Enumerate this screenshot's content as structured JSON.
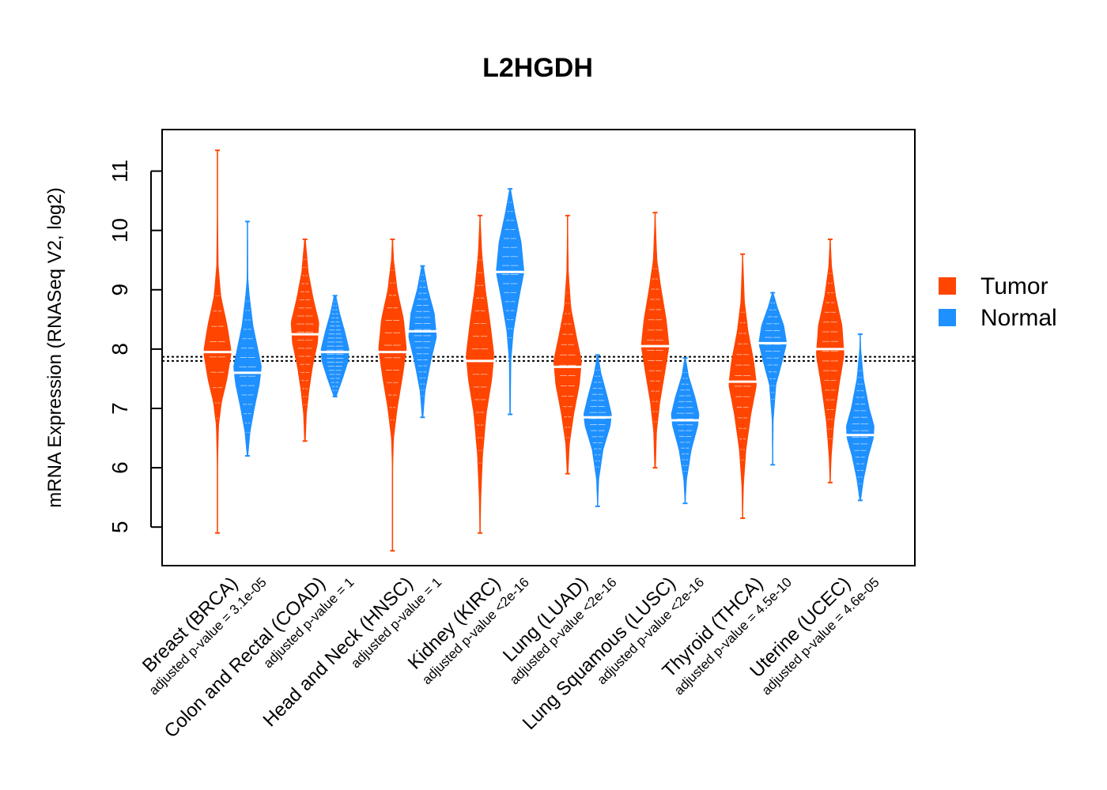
{
  "chart_data": {
    "type": "violin",
    "title": "L2HGDH",
    "ylabel": "mRNA Expression (RNASeq V2, log2)",
    "xlabel": "",
    "ylim": [
      4.35,
      11.7
    ],
    "yticks": [
      5,
      6,
      7,
      8,
      9,
      10,
      11
    ],
    "reference_lines": [
      7.8,
      7.87
    ],
    "legend": {
      "position": "right",
      "entries": [
        {
          "name": "Tumor",
          "color": "#FF4500"
        },
        {
          "name": "Normal",
          "color": "#1E90FF"
        }
      ]
    },
    "categories": [
      {
        "label": "Breast (BRCA)",
        "pvalue": "adjusted p-value = 3.1e-05",
        "tumor": {
          "median": 7.95,
          "min": 4.9,
          "max": 11.35,
          "density": [
            [
              4.9,
              0.02
            ],
            [
              5.85,
              0.02
            ],
            [
              6.3,
              0.06
            ],
            [
              6.7,
              0.1
            ],
            [
              7.1,
              0.3
            ],
            [
              7.5,
              0.7
            ],
            [
              7.95,
              1.0
            ],
            [
              8.4,
              0.7
            ],
            [
              8.9,
              0.25
            ],
            [
              9.4,
              0.08
            ],
            [
              10.3,
              0.03
            ],
            [
              11.35,
              0.02
            ]
          ]
        },
        "normal": {
          "median": 7.6,
          "min": 6.2,
          "max": 10.15,
          "density": [
            [
              6.2,
              0.05
            ],
            [
              6.6,
              0.2
            ],
            [
              7.0,
              0.5
            ],
            [
              7.4,
              0.85
            ],
            [
              7.7,
              1.0
            ],
            [
              8.0,
              0.75
            ],
            [
              8.4,
              0.4
            ],
            [
              8.9,
              0.15
            ],
            [
              9.2,
              0.05
            ],
            [
              10.15,
              0.03
            ]
          ]
        }
      },
      {
        "label": "Colon and Rectal (COAD)",
        "pvalue": "adjusted p-value = 1",
        "tumor": {
          "median": 8.25,
          "min": 6.45,
          "max": 9.85,
          "density": [
            [
              6.45,
              0.05
            ],
            [
              6.9,
              0.12
            ],
            [
              7.3,
              0.3
            ],
            [
              7.7,
              0.55
            ],
            [
              8.1,
              0.9
            ],
            [
              8.45,
              1.0
            ],
            [
              8.85,
              0.6
            ],
            [
              9.3,
              0.25
            ],
            [
              9.85,
              0.05
            ]
          ]
        },
        "normal": {
          "median": 7.95,
          "min": 7.2,
          "max": 8.9,
          "density": [
            [
              7.2,
              0.1
            ],
            [
              7.5,
              0.55
            ],
            [
              7.8,
              0.95
            ],
            [
              8.0,
              1.0
            ],
            [
              8.3,
              0.7
            ],
            [
              8.6,
              0.35
            ],
            [
              8.9,
              0.08
            ]
          ]
        }
      },
      {
        "label": "Head and Neck (HNSC)",
        "pvalue": "adjusted p-value = 1",
        "tumor": {
          "median": 7.95,
          "min": 4.6,
          "max": 9.85,
          "density": [
            [
              4.6,
              0.02
            ],
            [
              5.1,
              0.02
            ],
            [
              6.0,
              0.03
            ],
            [
              6.5,
              0.1
            ],
            [
              7.0,
              0.35
            ],
            [
              7.5,
              0.7
            ],
            [
              8.0,
              1.0
            ],
            [
              8.5,
              0.8
            ],
            [
              9.0,
              0.35
            ],
            [
              9.5,
              0.1
            ],
            [
              9.85,
              0.03
            ]
          ]
        },
        "normal": {
          "median": 8.3,
          "min": 6.85,
          "max": 9.4,
          "density": [
            [
              6.85,
              0.05
            ],
            [
              7.3,
              0.2
            ],
            [
              7.8,
              0.6
            ],
            [
              8.2,
              1.0
            ],
            [
              8.6,
              0.85
            ],
            [
              9.0,
              0.4
            ],
            [
              9.4,
              0.08
            ]
          ]
        }
      },
      {
        "label": "Kidney (KIRC)",
        "pvalue": "adjusted p-value <2e-16",
        "tumor": {
          "median": 7.8,
          "min": 4.9,
          "max": 10.25,
          "density": [
            [
              4.9,
              0.03
            ],
            [
              5.5,
              0.08
            ],
            [
              6.2,
              0.2
            ],
            [
              6.9,
              0.45
            ],
            [
              7.5,
              0.85
            ],
            [
              7.9,
              1.0
            ],
            [
              8.4,
              0.75
            ],
            [
              9.0,
              0.4
            ],
            [
              9.6,
              0.15
            ],
            [
              10.25,
              0.03
            ]
          ]
        },
        "normal": {
          "median": 9.3,
          "min": 6.9,
          "max": 10.7,
          "density": [
            [
              6.9,
              0.04
            ],
            [
              7.8,
              0.08
            ],
            [
              8.3,
              0.25
            ],
            [
              8.8,
              0.6
            ],
            [
              9.3,
              1.0
            ],
            [
              9.8,
              0.8
            ],
            [
              10.3,
              0.35
            ],
            [
              10.7,
              0.05
            ]
          ]
        }
      },
      {
        "label": "Lung (LUAD)",
        "pvalue": "adjusted p-value <2e-16",
        "tumor": {
          "median": 7.7,
          "min": 5.9,
          "max": 10.25,
          "density": [
            [
              5.9,
              0.05
            ],
            [
              6.4,
              0.15
            ],
            [
              6.9,
              0.45
            ],
            [
              7.4,
              0.85
            ],
            [
              7.8,
              1.0
            ],
            [
              8.2,
              0.65
            ],
            [
              8.7,
              0.25
            ],
            [
              9.3,
              0.08
            ],
            [
              10.25,
              0.02
            ]
          ]
        },
        "normal": {
          "median": 6.85,
          "min": 5.35,
          "max": 7.9,
          "density": [
            [
              5.35,
              0.03
            ],
            [
              5.8,
              0.1
            ],
            [
              6.3,
              0.4
            ],
            [
              6.7,
              0.9
            ],
            [
              6.9,
              1.0
            ],
            [
              7.2,
              0.7
            ],
            [
              7.6,
              0.25
            ],
            [
              7.9,
              0.05
            ]
          ]
        }
      },
      {
        "label": "Lung Squamous (LUSC)",
        "pvalue": "adjusted p-value <2e-16",
        "tumor": {
          "median": 8.05,
          "min": 6.0,
          "max": 10.3,
          "density": [
            [
              6.0,
              0.05
            ],
            [
              6.6,
              0.12
            ],
            [
              7.1,
              0.35
            ],
            [
              7.6,
              0.7
            ],
            [
              8.05,
              1.0
            ],
            [
              8.5,
              0.8
            ],
            [
              9.0,
              0.45
            ],
            [
              9.5,
              0.15
            ],
            [
              10.3,
              0.02
            ]
          ]
        },
        "normal": {
          "median": 6.8,
          "min": 5.4,
          "max": 7.85,
          "density": [
            [
              5.4,
              0.03
            ],
            [
              5.8,
              0.12
            ],
            [
              6.3,
              0.45
            ],
            [
              6.7,
              0.9
            ],
            [
              6.9,
              1.0
            ],
            [
              7.2,
              0.7
            ],
            [
              7.55,
              0.25
            ],
            [
              7.85,
              0.05
            ]
          ]
        }
      },
      {
        "label": "Thyroid (THCA)",
        "pvalue": "adjusted p-value = 4.5e-10",
        "tumor": {
          "median": 7.45,
          "min": 5.15,
          "max": 9.6,
          "density": [
            [
              5.15,
              0.03
            ],
            [
              5.7,
              0.08
            ],
            [
              6.3,
              0.25
            ],
            [
              6.9,
              0.6
            ],
            [
              7.4,
              1.0
            ],
            [
              7.8,
              0.8
            ],
            [
              8.3,
              0.4
            ],
            [
              8.8,
              0.15
            ],
            [
              9.6,
              0.03
            ]
          ]
        },
        "normal": {
          "median": 8.1,
          "min": 6.05,
          "max": 8.95,
          "density": [
            [
              6.05,
              0.03
            ],
            [
              6.8,
              0.06
            ],
            [
              7.4,
              0.25
            ],
            [
              7.8,
              0.7
            ],
            [
              8.1,
              1.0
            ],
            [
              8.4,
              0.8
            ],
            [
              8.7,
              0.35
            ],
            [
              8.95,
              0.05
            ]
          ]
        }
      },
      {
        "label": "Uterine (UCEC)",
        "pvalue": "adjusted p-value = 4.6e-05",
        "tumor": {
          "median": 8.0,
          "min": 5.75,
          "max": 9.85,
          "density": [
            [
              5.75,
              0.03
            ],
            [
              6.2,
              0.1
            ],
            [
              6.8,
              0.3
            ],
            [
              7.4,
              0.65
            ],
            [
              7.9,
              1.0
            ],
            [
              8.4,
              0.85
            ],
            [
              8.9,
              0.4
            ],
            [
              9.4,
              0.12
            ],
            [
              9.85,
              0.03
            ]
          ]
        },
        "normal": {
          "median": 6.55,
          "min": 5.45,
          "max": 8.25,
          "density": [
            [
              5.45,
              0.05
            ],
            [
              5.8,
              0.25
            ],
            [
              6.2,
              0.6
            ],
            [
              6.5,
              0.95
            ],
            [
              6.7,
              1.0
            ],
            [
              7.0,
              0.65
            ],
            [
              7.5,
              0.25
            ],
            [
              8.0,
              0.06
            ],
            [
              8.25,
              0.02
            ]
          ]
        }
      }
    ]
  }
}
